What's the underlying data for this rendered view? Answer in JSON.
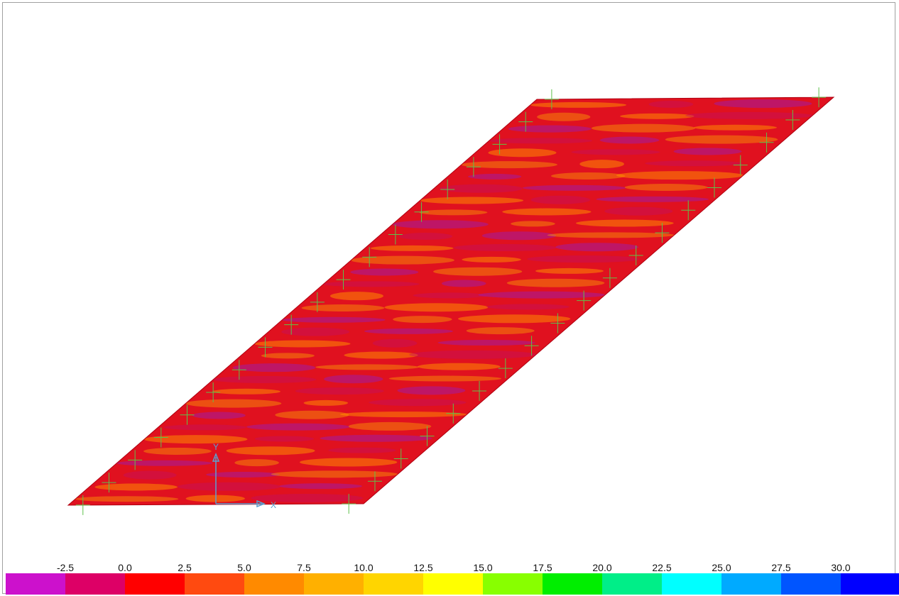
{
  "axes": {
    "x_label": "X",
    "y_label": "Y"
  },
  "legend": {
    "values": [
      "-2.5",
      "0.0",
      "2.5",
      "5.0",
      "7.5",
      "10.0",
      "12.5",
      "15.0",
      "17.5",
      "20.0",
      "22.5",
      "25.0",
      "27.5",
      "30.0"
    ],
    "colors": [
      "#cc11cc",
      "#dd0066",
      "#ff0000",
      "#ff4a10",
      "#ff8a00",
      "#ffb000",
      "#ffd500",
      "#ffff00",
      "#88ff00",
      "#00ee00",
      "#00ee88",
      "#00ffff",
      "#00aaff",
      "#0055ff",
      "#0000ff"
    ]
  },
  "plot": {
    "base_color": "#e0111f",
    "band_colors": [
      "#ffb000",
      "#ff8a00",
      "#c0106a",
      "#a21ba0"
    ],
    "grid_color": "#5ec24b"
  }
}
